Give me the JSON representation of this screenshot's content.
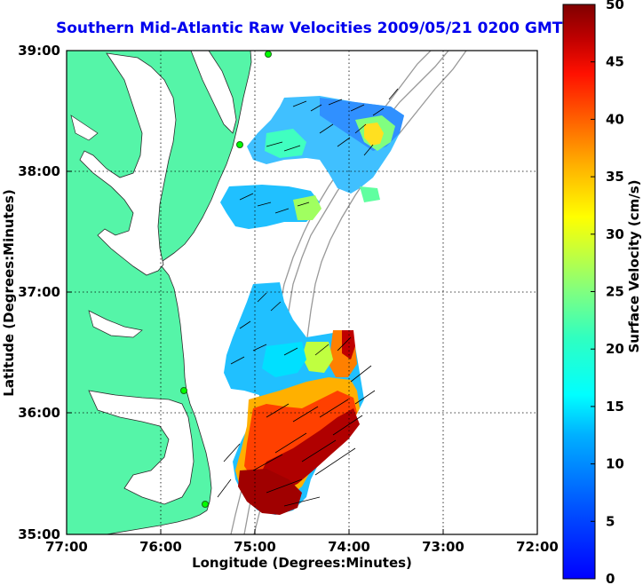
{
  "title": "Southern Mid-Atlantic Raw Velocities 2009/05/21 0200 GMT",
  "map": {
    "xlabel": "Longitude (Degrees:Minutes)",
    "ylabel": "Latitude (Degrees:Minutes)",
    "x_ticks": [
      "77:00",
      "76:00",
      "75:00",
      "74:00",
      "73:00",
      "72:00"
    ],
    "y_ticks": [
      "39:00",
      "38:00",
      "37:00",
      "36:00",
      "35:00"
    ],
    "x_range": [
      -77,
      -72
    ],
    "y_range": [
      35,
      39
    ],
    "land_color": "#55f5a8",
    "water_color": "#ffffff",
    "grid": "dotted"
  },
  "colorbar": {
    "label": "Surface Velocity (cm/s)",
    "ticks": [
      "0",
      "5",
      "10",
      "15",
      "20",
      "25",
      "30",
      "35",
      "40",
      "45",
      "50"
    ],
    "range": [
      0,
      50
    ],
    "colors": [
      "#0000ff",
      "#0060ff",
      "#00c0ff",
      "#00ffff",
      "#40ffc0",
      "#80ff80",
      "#c0ff40",
      "#ffff00",
      "#ffc000",
      "#ff8000",
      "#ff4000",
      "#ff0000",
      "#c00000",
      "#800000"
    ]
  },
  "stations": [
    "station-1",
    "station-2",
    "station-3",
    "station-4"
  ]
}
